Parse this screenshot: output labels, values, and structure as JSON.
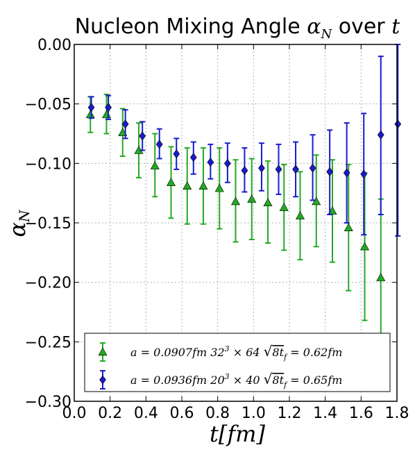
{
  "chart_data": {
    "type": "scatter",
    "title": "Nucleon Mixing Angle α_N over t",
    "title_text": "Nucleon Mixing Angle ",
    "title_symbol": "α",
    "title_symbol_sub": "N",
    "title_over": " over ",
    "title_t": "t",
    "xlabel": "t[fm]",
    "ylabel": "α_N",
    "ylabel_symbol": "α",
    "ylabel_sub": "N",
    "xlim": [
      0.0,
      1.8
    ],
    "ylim": [
      -0.3,
      0.0
    ],
    "xticks": [
      0.0,
      0.2,
      0.4,
      0.6,
      0.8,
      1.0,
      1.2,
      1.4,
      1.6,
      1.8
    ],
    "xtick_labels": [
      "0.0",
      "0.2",
      "0.4",
      "0.6",
      "0.8",
      "1.0",
      "1.2",
      "1.4",
      "1.6",
      "1.8"
    ],
    "yticks": [
      0.0,
      -0.05,
      -0.1,
      -0.15,
      -0.2,
      -0.25,
      -0.3
    ],
    "ytick_labels": [
      "0.00",
      "−0.05",
      "−0.10",
      "−0.15",
      "−0.20",
      "−0.25",
      "−0.30"
    ],
    "grid": true,
    "legend_placement": "lower-center",
    "series": [
      {
        "name": "a = 0.0907fm 32³ × 64 √(8t_f) = 0.62fm",
        "legend_parts": [
          "a = 0.0907fm 32",
          "3",
          " × 64 ",
          "√",
          "8t",
          "f",
          " = 0.62fm"
        ],
        "color": "#22aa22",
        "marker": "triangle",
        "points": [
          {
            "x": 0.09,
            "y": -0.059,
            "lo": -0.074,
            "hi": -0.044
          },
          {
            "x": 0.18,
            "y": -0.059,
            "lo": -0.075,
            "hi": -0.042
          },
          {
            "x": 0.27,
            "y": -0.074,
            "lo": -0.094,
            "hi": -0.054
          },
          {
            "x": 0.36,
            "y": -0.089,
            "lo": -0.112,
            "hi": -0.066
          },
          {
            "x": 0.45,
            "y": -0.102,
            "lo": -0.128,
            "hi": -0.075
          },
          {
            "x": 0.54,
            "y": -0.116,
            "lo": -0.146,
            "hi": -0.086
          },
          {
            "x": 0.63,
            "y": -0.119,
            "lo": -0.151,
            "hi": -0.087
          },
          {
            "x": 0.72,
            "y": -0.119,
            "lo": -0.151,
            "hi": -0.087
          },
          {
            "x": 0.81,
            "y": -0.121,
            "lo": -0.155,
            "hi": -0.087
          },
          {
            "x": 0.9,
            "y": -0.132,
            "lo": -0.166,
            "hi": -0.097
          },
          {
            "x": 0.99,
            "y": -0.13,
            "lo": -0.164,
            "hi": -0.096
          },
          {
            "x": 1.08,
            "y": -0.133,
            "lo": -0.167,
            "hi": -0.098
          },
          {
            "x": 1.17,
            "y": -0.137,
            "lo": -0.173,
            "hi": -0.101
          },
          {
            "x": 1.26,
            "y": -0.144,
            "lo": -0.181,
            "hi": -0.107
          },
          {
            "x": 1.35,
            "y": -0.132,
            "lo": -0.17,
            "hi": -0.093
          },
          {
            "x": 1.44,
            "y": -0.14,
            "lo": -0.183,
            "hi": -0.097
          },
          {
            "x": 1.53,
            "y": -0.154,
            "lo": -0.207,
            "hi": -0.101
          },
          {
            "x": 1.62,
            "y": -0.17,
            "lo": -0.232,
            "hi": -0.108
          },
          {
            "x": 1.71,
            "y": -0.196,
            "lo": -0.26,
            "hi": -0.13
          }
        ]
      },
      {
        "name": "a = 0.0936fm 20³ × 40 √(8t_f) = 0.65fm",
        "legend_parts": [
          "a = 0.0936fm 20",
          "3",
          " × 40 ",
          "√",
          "8t",
          "f",
          " = 0.65fm"
        ],
        "color": "#1a1acc",
        "marker": "diamond",
        "points": [
          {
            "x": 0.095,
            "y": -0.053,
            "lo": -0.062,
            "hi": -0.044
          },
          {
            "x": 0.19,
            "y": -0.053,
            "lo": -0.063,
            "hi": -0.043
          },
          {
            "x": 0.285,
            "y": -0.067,
            "lo": -0.079,
            "hi": -0.055
          },
          {
            "x": 0.38,
            "y": -0.077,
            "lo": -0.089,
            "hi": -0.065
          },
          {
            "x": 0.475,
            "y": -0.084,
            "lo": -0.096,
            "hi": -0.071
          },
          {
            "x": 0.57,
            "y": -0.092,
            "lo": -0.105,
            "hi": -0.079
          },
          {
            "x": 0.665,
            "y": -0.095,
            "lo": -0.109,
            "hi": -0.082
          },
          {
            "x": 0.76,
            "y": -0.099,
            "lo": -0.113,
            "hi": -0.084
          },
          {
            "x": 0.855,
            "y": -0.1,
            "lo": -0.116,
            "hi": -0.083
          },
          {
            "x": 0.95,
            "y": -0.106,
            "lo": -0.124,
            "hi": -0.087
          },
          {
            "x": 1.045,
            "y": -0.104,
            "lo": -0.123,
            "hi": -0.083
          },
          {
            "x": 1.14,
            "y": -0.105,
            "lo": -0.126,
            "hi": -0.084
          },
          {
            "x": 1.235,
            "y": -0.105,
            "lo": -0.128,
            "hi": -0.082
          },
          {
            "x": 1.33,
            "y": -0.104,
            "lo": -0.131,
            "hi": -0.076
          },
          {
            "x": 1.425,
            "y": -0.107,
            "lo": -0.143,
            "hi": -0.072
          },
          {
            "x": 1.52,
            "y": -0.108,
            "lo": -0.15,
            "hi": -0.066
          },
          {
            "x": 1.615,
            "y": -0.109,
            "lo": -0.16,
            "hi": -0.058
          },
          {
            "x": 1.71,
            "y": -0.076,
            "lo": -0.143,
            "hi": -0.01
          },
          {
            "x": 1.805,
            "y": -0.067,
            "lo": -0.161,
            "hi": 0.0
          }
        ]
      }
    ]
  }
}
